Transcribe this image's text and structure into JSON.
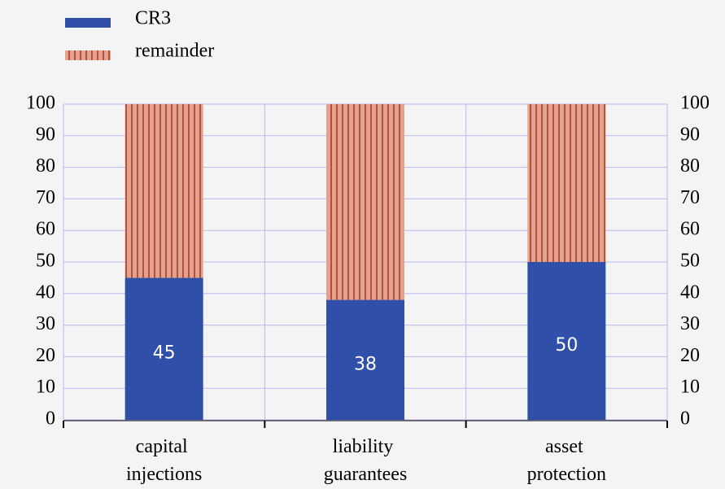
{
  "chart_data": {
    "type": "stacked_bar",
    "categories": [
      "capital injections",
      "liability guarantees",
      "asset protection"
    ],
    "series": [
      {
        "name": "CR3",
        "color": "#2f4fa8",
        "values": [
          45,
          38,
          50
        ]
      },
      {
        "name": "remainder",
        "color": "#e2a28e",
        "values": [
          55,
          62,
          50
        ]
      }
    ],
    "ylim": [
      0,
      100
    ],
    "yticks": [
      0,
      10,
      20,
      30,
      40,
      50,
      60,
      70,
      80,
      90,
      100
    ],
    "grid": true,
    "legend": "top-left"
  }
}
